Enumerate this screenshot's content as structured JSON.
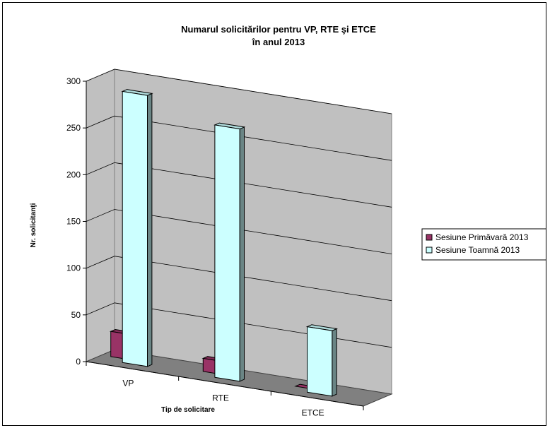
{
  "chart_data": {
    "type": "bar",
    "title_lines": [
      "Numarul solicitărilor pentru VP, RTE şi ETCE",
      "în anul 2013"
    ],
    "xlabel": "Tip de solicitare",
    "ylabel": "Nr. solicitanţi",
    "categories": [
      "VP",
      "RTE",
      "ETCE"
    ],
    "yticks": [
      "0",
      "50",
      "100",
      "150",
      "200",
      "250",
      "300"
    ],
    "ylim": [
      0,
      300
    ],
    "grid": true,
    "legend_position": "right",
    "series": [
      {
        "name": "Sesiune Primăvară 2013",
        "values": [
          27,
          14,
          0
        ],
        "color": "#993366"
      },
      {
        "name": "Sesiune Toamnă 2013",
        "values": [
          290,
          270,
          70
        ],
        "color": "#ccffff"
      }
    ],
    "colors": {
      "wall": "#c0c0c0",
      "floor": "#808080",
      "grid": "#000000"
    }
  }
}
